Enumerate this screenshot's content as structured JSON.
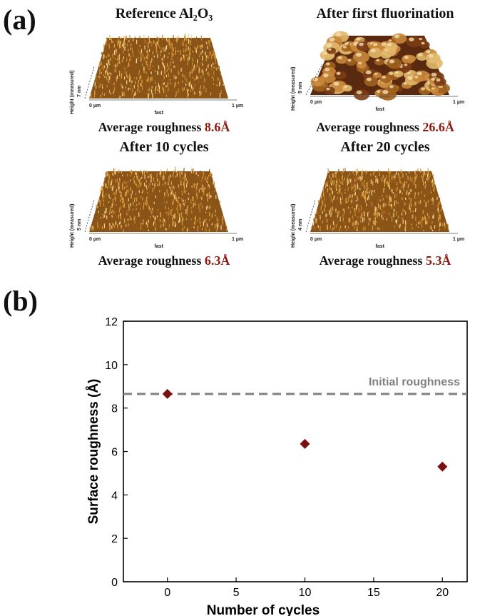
{
  "panel_a_label": "(a)",
  "panel_b_label": "(b)",
  "afm_panels": [
    {
      "title": "Reference Al₂O₃",
      "roughness_prefix": "Average roughness ",
      "roughness_value": "8.6Å",
      "height_axis_label": "Height (measured)",
      "height_scale": "7 nm",
      "x_start": "0 µm",
      "x_end": "1 µm",
      "x_label": "fast",
      "palette": "fine-gold"
    },
    {
      "title": "After first fluorination",
      "roughness_prefix": "Average roughness ",
      "roughness_value": "26.6Å",
      "height_axis_label": "Height (measured)",
      "height_scale": "9 nm",
      "x_start": "0 µm",
      "x_end": "1 µm",
      "x_label": "fast",
      "palette": "coarse-brown"
    },
    {
      "title": "After 10 cycles",
      "roughness_prefix": "Average roughness ",
      "roughness_value": "6.3Å",
      "height_axis_label": "Height (measured)",
      "height_scale": "5 nm",
      "x_start": "0 µm",
      "x_end": "1 µm",
      "x_label": "fast",
      "palette": "fine-gold"
    },
    {
      "title": "After 20 cycles",
      "roughness_prefix": "Average roughness ",
      "roughness_value": "5.3Å",
      "height_axis_label": "Height (measured)",
      "height_scale": "4 nm",
      "x_start": "0 µm",
      "x_end": "1 µm",
      "x_label": "fast",
      "palette": "fine-gold"
    }
  ],
  "chart_data": {
    "type": "scatter",
    "xlabel": "Number of cycles",
    "ylabel": "Surface roughness (Å)",
    "xlim": [
      -3.2,
      21.8
    ],
    "ylim": [
      0,
      12
    ],
    "x_ticks": [
      0,
      5,
      10,
      15,
      20
    ],
    "y_ticks": [
      0,
      2,
      4,
      6,
      8,
      10,
      12
    ],
    "grid": false,
    "marker": "diamond",
    "marker_color": "#7a0f0f",
    "series": [
      {
        "x": [
          0,
          10,
          20
        ],
        "y": [
          8.65,
          6.35,
          5.3
        ]
      }
    ],
    "reference_line": {
      "y": 8.65,
      "label": "Initial roughness",
      "style": "dashed",
      "color": "#808080"
    }
  }
}
